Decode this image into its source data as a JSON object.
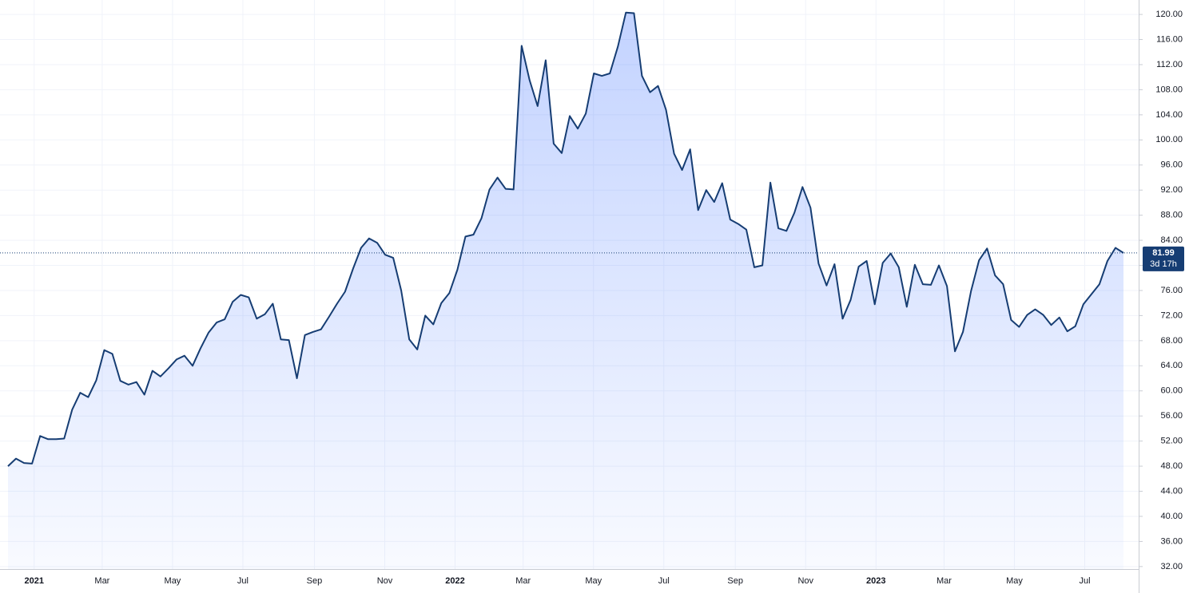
{
  "chart_data": {
    "type": "area",
    "values": [
      48,
      49.2,
      48.5,
      48.4,
      52.8,
      52.3,
      52.3,
      52.4,
      57,
      59.7,
      59,
      61.7,
      66.5,
      65.9,
      61.6,
      61,
      61.4,
      59.4,
      63.2,
      62.3,
      63.6,
      65,
      65.6,
      64,
      66.8,
      69.3,
      70.9,
      71.4,
      74.2,
      75.3,
      74.9,
      71.5,
      72.2,
      73.9,
      68.2,
      68.1,
      62,
      68.9,
      69.4,
      69.8,
      71.8,
      73.9,
      75.8,
      79.5,
      82.8,
      84.3,
      83.6,
      81.7,
      81.2,
      76,
      68.2,
      66.6,
      72,
      70.6,
      74,
      75.6,
      79.3,
      84.6,
      84.9,
      87.5,
      92.1,
      94,
      92.2,
      92.1,
      115,
      109.5,
      105.4,
      112.7,
      99.4,
      97.9,
      103.8,
      101.8,
      104.2,
      110.6,
      110.2,
      110.6,
      114.9,
      120.3,
      120.2,
      110.2,
      107.6,
      108.6,
      104.8,
      97.8,
      95.2,
      98.5,
      88.8,
      92,
      90.1,
      93.1,
      87.3,
      86.6,
      85.7,
      79.7,
      80,
      93.2,
      85.9,
      85.5,
      88.4,
      92.5,
      89.2,
      80.3,
      76.8,
      80.2,
      71.5,
      74.5,
      79.8,
      80.7,
      73.8,
      80.4,
      81.9,
      79.7,
      73.4,
      80.1,
      77,
      76.9,
      80,
      76.7,
      66.3,
      69.4,
      75.9,
      80.8,
      82.7,
      78.4,
      77,
      71.3,
      70.2,
      72.1,
      73,
      72.1,
      70.5,
      71.7,
      69.5,
      70.3,
      73.8,
      75.4,
      77,
      80.7,
      82.8,
      81.99
    ],
    "color": "#163d73",
    "countdown": "3d 17h",
    "xlim": [
      "2020-12",
      "2023-09"
    ],
    "xticks": [
      {
        "value": "2021-01",
        "label": "2021"
      },
      {
        "value": "2021-03",
        "label": "Mar"
      },
      {
        "value": "2021-05",
        "label": "May"
      },
      {
        "value": "2021-07",
        "label": "Jul"
      },
      {
        "value": "2021-09",
        "label": "Sep"
      },
      {
        "value": "2021-11",
        "label": "Nov"
      },
      {
        "value": "2022-01",
        "label": "2022"
      },
      {
        "value": "2022-03",
        "label": "Mar"
      },
      {
        "value": "2022-05",
        "label": "May"
      },
      {
        "value": "2022-07",
        "label": "Jul"
      },
      {
        "value": "2022-09",
        "label": "Sep"
      },
      {
        "value": "2022-11",
        "label": "Nov"
      },
      {
        "value": "2023-01",
        "label": "2023"
      },
      {
        "value": "2023-03",
        "label": "Mar"
      },
      {
        "value": "2023-05",
        "label": "May"
      },
      {
        "value": "2023-07",
        "label": "Jul"
      }
    ],
    "ylim": [
      31.6,
      122.3
    ],
    "yticks": [
      {
        "value": 32,
        "label": "32.00"
      },
      {
        "value": 36,
        "label": "36.00"
      },
      {
        "value": 40,
        "label": "40.00"
      },
      {
        "value": 44,
        "label": "44.00"
      },
      {
        "value": 48,
        "label": "48.00"
      },
      {
        "value": 52,
        "label": "52.00"
      },
      {
        "value": 56,
        "label": "56.00"
      },
      {
        "value": 60,
        "label": "60.00"
      },
      {
        "value": 64,
        "label": "64.00"
      },
      {
        "value": 68,
        "label": "68.00"
      },
      {
        "value": 72,
        "label": "72.00"
      },
      {
        "value": 76,
        "label": "76.00"
      },
      {
        "value": 80,
        "label": "80.00"
      },
      {
        "value": 84,
        "label": "84.00"
      },
      {
        "value": 88,
        "label": "88.00"
      },
      {
        "value": 92,
        "label": "92.00"
      },
      {
        "value": 96,
        "label": "96.00"
      },
      {
        "value": 100,
        "label": "100.00"
      },
      {
        "value": 104,
        "label": "104.00"
      },
      {
        "value": 108,
        "label": "108.00"
      },
      {
        "value": 112,
        "label": "112.00"
      },
      {
        "value": 116,
        "label": "116.00"
      },
      {
        "value": 120,
        "label": "120.00"
      }
    ],
    "grid": true
  }
}
